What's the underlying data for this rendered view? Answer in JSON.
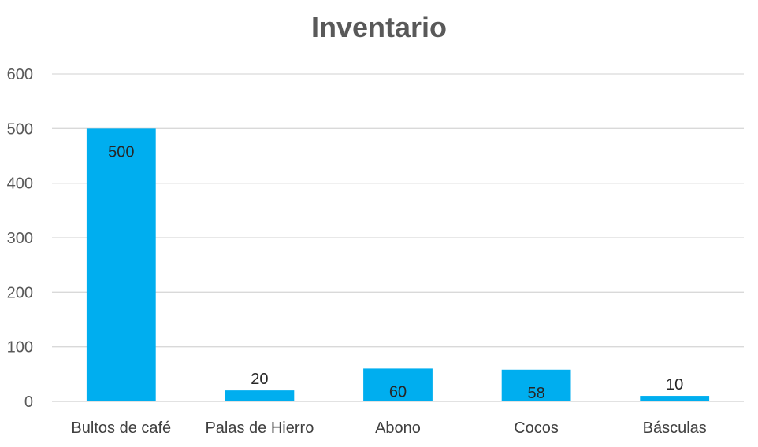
{
  "chart_data": {
    "type": "bar",
    "title": "Inventario",
    "categories": [
      "Bultos de café",
      "Palas de Hierro",
      "Abono",
      "Cocos",
      "Básculas"
    ],
    "values": [
      500,
      20,
      60,
      58,
      10
    ],
    "ylim": [
      0,
      600
    ],
    "yticks": [
      0,
      100,
      200,
      300,
      400,
      500,
      600
    ],
    "grid": true,
    "legend": "none",
    "bar_color": "#00AEEF",
    "data_labels": true
  }
}
